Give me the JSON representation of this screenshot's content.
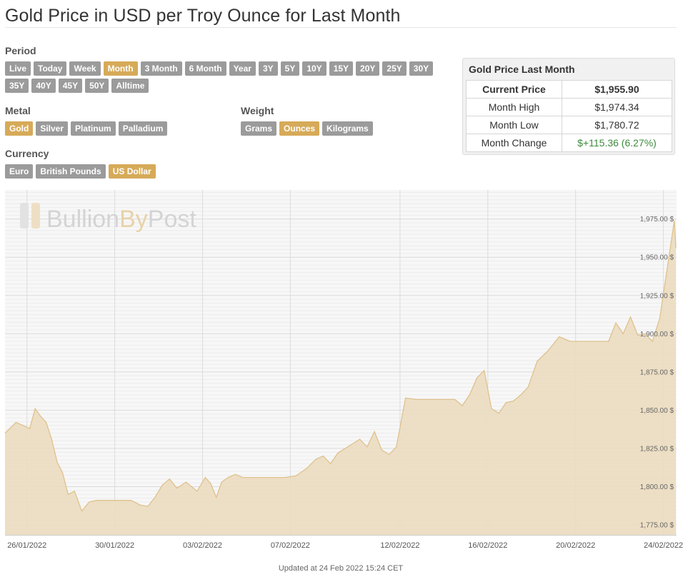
{
  "page": {
    "title": "Gold Price in USD per Troy Ounce for Last Month"
  },
  "controls": {
    "period": {
      "label": "Period",
      "options": [
        "Live",
        "Today",
        "Week",
        "Month",
        "3 Month",
        "6 Month",
        "Year",
        "3Y",
        "5Y",
        "10Y",
        "15Y",
        "20Y",
        "25Y",
        "30Y",
        "35Y",
        "40Y",
        "45Y",
        "50Y",
        "Alltime"
      ],
      "selected": "Month"
    },
    "metal": {
      "label": "Metal",
      "options": [
        "Gold",
        "Silver",
        "Platinum",
        "Palladium"
      ],
      "selected": "Gold"
    },
    "weight": {
      "label": "Weight",
      "options": [
        "Grams",
        "Ounces",
        "Kilograms"
      ],
      "selected": "Ounces"
    },
    "currency": {
      "label": "Currency",
      "options": [
        "Euro",
        "British Pounds",
        "US Dollar"
      ],
      "selected": "US Dollar"
    }
  },
  "summary": {
    "title": "Gold Price Last Month",
    "rows": [
      {
        "label": "Current Price",
        "value": "$1,955.90"
      },
      {
        "label": "Month High",
        "value": "$1,974.34"
      },
      {
        "label": "Month Low",
        "value": "$1,780.72"
      },
      {
        "label": "Month Change",
        "value": "$+115.36 (6.27%)"
      }
    ]
  },
  "colors": {
    "accent": "#d6aa58",
    "button": "#9b9b9b",
    "fill": "#ecdcc0",
    "line": "#dfc18e",
    "positive": "#3d8b3d"
  },
  "watermark": {
    "part1": "Bullion",
    "part2": "By",
    "part3": "Post"
  },
  "footer": {
    "updated": "Updated at 24 Feb 2022 15:24 CET"
  },
  "chart_data": {
    "type": "area",
    "x_tick_labels": [
      "26/01/2022",
      "30/01/2022",
      "03/02/2022",
      "07/02/2022",
      "12/02/2022",
      "16/02/2022",
      "20/02/2022",
      "24/02/2022"
    ],
    "y_tick_labels": [
      "1,975.00 $",
      "1,950.00 $",
      "1,925.00 $",
      "1,900.00 $",
      "1,875.00 $",
      "1,850.00 $",
      "1,825.00 $",
      "1,800.00 $",
      "1,775.00 $"
    ],
    "y_ticks": [
      1975,
      1950,
      1925,
      1900,
      1875,
      1850,
      1825,
      1800,
      1775
    ],
    "ylim": [
      1768,
      1994
    ],
    "x_start": "2022-01-25",
    "x_end": "2022-02-24",
    "grid": true,
    "x": [
      "2022-01-25",
      "2022-01-25",
      "2022-01-25",
      "2022-01-26",
      "2022-01-26",
      "2022-01-26",
      "2022-01-26",
      "2022-01-27",
      "2022-01-27",
      "2022-01-27",
      "2022-01-27",
      "2022-01-28",
      "2022-01-28",
      "2022-01-28",
      "2022-01-29",
      "2022-01-29",
      "2022-01-29",
      "2022-01-30",
      "2022-01-30",
      "2022-01-31",
      "2022-01-31",
      "2022-01-31",
      "2022-02-01",
      "2022-02-01",
      "2022-02-01",
      "2022-02-02",
      "2022-02-02",
      "2022-02-03",
      "2022-02-03",
      "2022-02-03",
      "2022-02-03",
      "2022-02-04",
      "2022-02-04",
      "2022-02-04",
      "2022-02-05",
      "2022-02-05",
      "2022-02-05",
      "2022-02-06",
      "2022-02-06",
      "2022-02-07",
      "2022-02-07",
      "2022-02-08",
      "2022-02-08",
      "2022-02-08",
      "2022-02-09",
      "2022-02-09",
      "2022-02-09",
      "2022-02-10",
      "2022-02-10",
      "2022-02-10",
      "2022-02-11",
      "2022-02-11",
      "2022-02-11",
      "2022-02-12",
      "2022-02-12",
      "2022-02-13",
      "2022-02-13",
      "2022-02-14",
      "2022-02-14",
      "2022-02-14",
      "2022-02-15",
      "2022-02-15",
      "2022-02-15",
      "2022-02-16",
      "2022-02-16",
      "2022-02-16",
      "2022-02-17",
      "2022-02-17",
      "2022-02-17",
      "2022-02-18",
      "2022-02-18",
      "2022-02-19",
      "2022-02-19",
      "2022-02-20",
      "2022-02-20",
      "2022-02-21",
      "2022-02-21",
      "2022-02-21",
      "2022-02-22",
      "2022-02-22",
      "2022-02-22",
      "2022-02-23",
      "2022-02-23",
      "2022-02-23",
      "2022-02-24",
      "2022-02-24",
      "2022-02-24"
    ],
    "y": [
      1835,
      1842,
      1840,
      1838,
      1851,
      1846,
      1842,
      1831,
      1816,
      1809,
      1795,
      1797,
      1784,
      1790,
      1791,
      1791,
      1791,
      1791,
      1791,
      1788,
      1787,
      1793,
      1801,
      1805,
      1799,
      1803,
      1797,
      1806,
      1802,
      1793,
      1803,
      1806,
      1808,
      1806,
      1806,
      1806,
      1806,
      1806,
      1806,
      1807,
      1812,
      1818,
      1820,
      1815,
      1822,
      1825,
      1828,
      1831,
      1826,
      1836,
      1824,
      1821,
      1826,
      1858,
      1857,
      1857,
      1857,
      1857,
      1857,
      1853,
      1860,
      1871,
      1876,
      1851,
      1848,
      1855,
      1856,
      1860,
      1865,
      1882,
      1889,
      1898,
      1895,
      1895,
      1895,
      1895,
      1895,
      1907,
      1900,
      1911,
      1899,
      1900,
      1895,
      1910,
      1942,
      1974,
      1955.9
    ]
  }
}
